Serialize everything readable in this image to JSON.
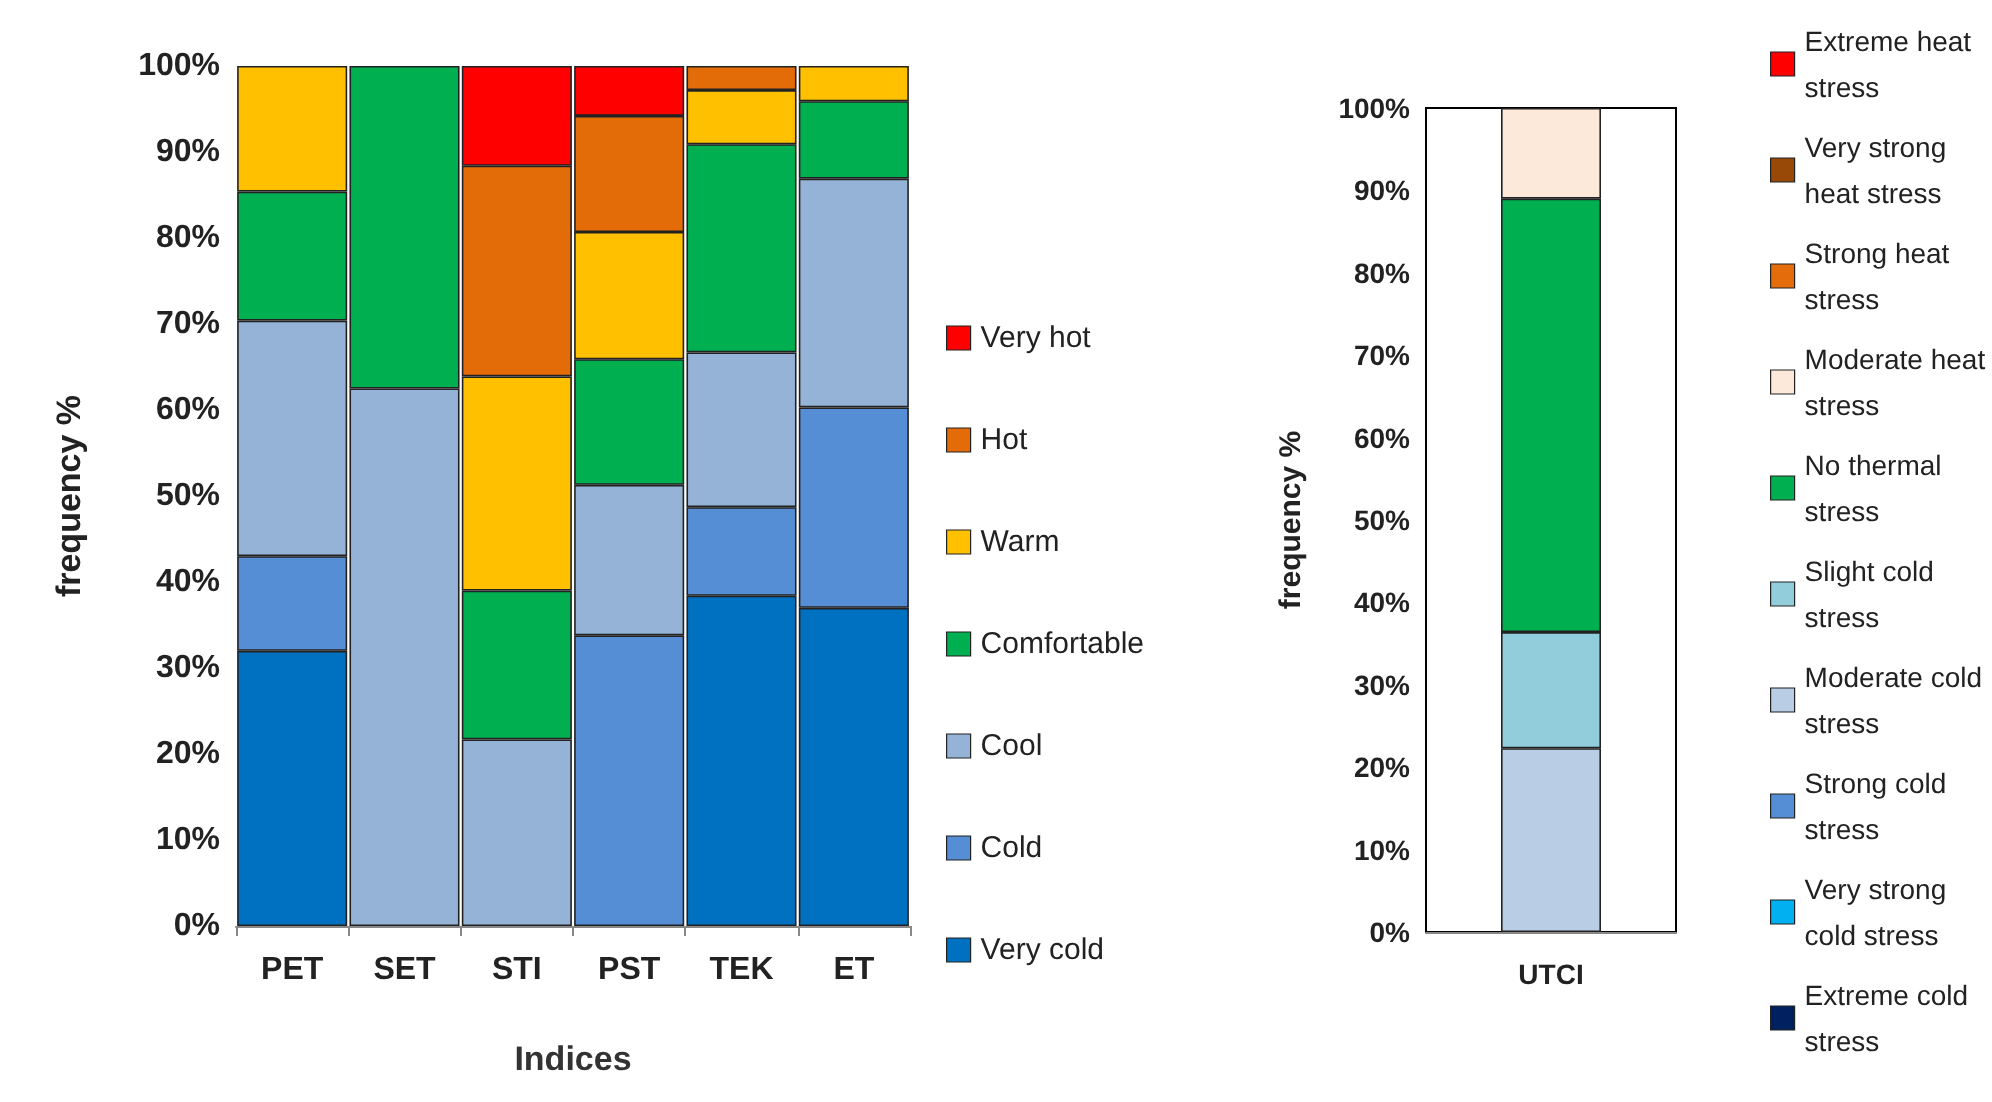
{
  "chart_data": [
    {
      "type": "bar",
      "stacked": true,
      "xlabel": "Indices",
      "ylabel": "frequency %",
      "categories": [
        "PET",
        "SET",
        "STI",
        "PST",
        "TEK",
        "ET"
      ],
      "series": [
        {
          "name": "Very cold",
          "color": "#0070c0",
          "values": [
            32,
            0,
            0,
            0,
            38.4,
            37
          ]
        },
        {
          "name": "Cold",
          "color": "#558ed5",
          "values": [
            11,
            0,
            0,
            33.8,
            10.3,
            23.3
          ]
        },
        {
          "name": "Cool",
          "color": "#95b3d7",
          "values": [
            27.4,
            62.5,
            21.7,
            17.5,
            18,
            26.6
          ]
        },
        {
          "name": "Comfortable",
          "color": "#00b050",
          "values": [
            15,
            37.5,
            17.3,
            14.6,
            24.2,
            9
          ]
        },
        {
          "name": "Warm",
          "color": "#ffc000",
          "values": [
            14.6,
            0,
            24.9,
            14.8,
            6.3,
            4.1
          ]
        },
        {
          "name": "Hot",
          "color": "#e36c09",
          "values": [
            0,
            0,
            24.5,
            13.5,
            2.8,
            0
          ]
        },
        {
          "name": "Very hot",
          "color": "#ff0000",
          "values": [
            0,
            0,
            11.6,
            5.8,
            0,
            0
          ]
        }
      ],
      "ylim": [
        0,
        100
      ],
      "yticks": [
        {
          "value": 0,
          "label": "0%"
        },
        {
          "value": 10,
          "label": "10%"
        },
        {
          "value": 20,
          "label": "20%"
        },
        {
          "value": 30,
          "label": "30%"
        },
        {
          "value": 40,
          "label": "40%"
        },
        {
          "value": 50,
          "label": "50%"
        },
        {
          "value": 60,
          "label": "60%"
        },
        {
          "value": 70,
          "label": "70%"
        },
        {
          "value": 80,
          "label": "80%"
        },
        {
          "value": 90,
          "label": "90%"
        },
        {
          "value": 100,
          "label": "100%"
        }
      ],
      "grid": false,
      "legend": "right"
    },
    {
      "type": "bar",
      "stacked": true,
      "ylabel": "frequency %",
      "categories": [
        "UTCI"
      ],
      "series": [
        {
          "name": "Extreme cold stress",
          "color": "#002060",
          "values": [
            0
          ]
        },
        {
          "name": "Very strong cold stress",
          "color": "#00b0f0",
          "values": [
            0
          ]
        },
        {
          "name": "Strong cold stress",
          "color": "#558ed5",
          "values": [
            0
          ]
        },
        {
          "name": "Moderate cold stress",
          "color": "#b9cde5",
          "values": [
            22.3
          ]
        },
        {
          "name": "Slight cold stress",
          "color": "#92cddc",
          "values": [
            14.1
          ]
        },
        {
          "name": "No thermal stress",
          "color": "#00b050",
          "values": [
            52.6
          ]
        },
        {
          "name": "Moderate heat stress",
          "color": "#fde9d9",
          "values": [
            11
          ]
        },
        {
          "name": "Strong heat stress",
          "color": "#e46c0a",
          "values": [
            0
          ]
        },
        {
          "name": "Very strong heat stress",
          "color": "#984807",
          "values": [
            0
          ]
        },
        {
          "name": "Extreme heat stress",
          "color": "#ff0000",
          "values": [
            0
          ]
        }
      ],
      "ylim": [
        0,
        100
      ],
      "yticks": [
        {
          "value": 0,
          "label": "0%"
        },
        {
          "value": 10,
          "label": "10%"
        },
        {
          "value": 20,
          "label": "20%"
        },
        {
          "value": 30,
          "label": "30%"
        },
        {
          "value": 40,
          "label": "40%"
        },
        {
          "value": 50,
          "label": "50%"
        },
        {
          "value": 60,
          "label": "60%"
        },
        {
          "value": 70,
          "label": "70%"
        },
        {
          "value": 80,
          "label": "80%"
        },
        {
          "value": 90,
          "label": "90%"
        },
        {
          "value": 100,
          "label": "100%"
        }
      ],
      "grid": false,
      "legend": "right"
    }
  ]
}
